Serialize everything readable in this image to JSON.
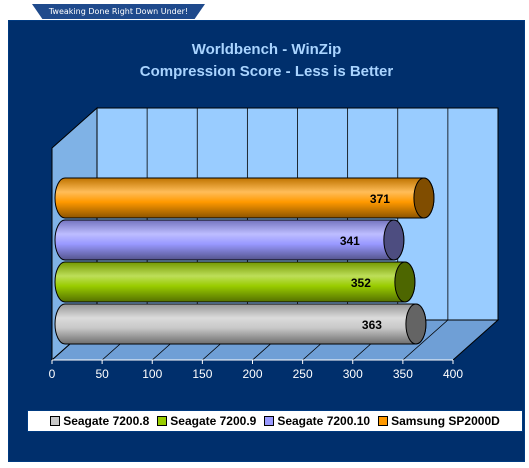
{
  "banner": "Tweaking Done Right Down Under!",
  "chart_data": {
    "type": "bar",
    "orientation": "horizontal",
    "title": "Worldbench - WinZip",
    "subtitle": "Compression Score - Less is Better",
    "xlim": [
      0,
      400
    ],
    "x_ticks": [
      "0",
      "50",
      "100",
      "150",
      "200",
      "250",
      "300",
      "350",
      "400"
    ],
    "grid": true,
    "legend_position": "bottom",
    "series": [
      {
        "name": "Seagate 7200.8",
        "value": 363,
        "label": "363",
        "color": "#c8c8c8"
      },
      {
        "name": "Seagate 7200.9",
        "value": 352,
        "label": "352",
        "color": "#99cc00"
      },
      {
        "name": "Seagate 7200.10",
        "value": 341,
        "label": "341",
        "color": "#9999ff"
      },
      {
        "name": "Samsung SP2000D",
        "value": 371,
        "label": "371",
        "color": "#ff9900"
      }
    ]
  }
}
